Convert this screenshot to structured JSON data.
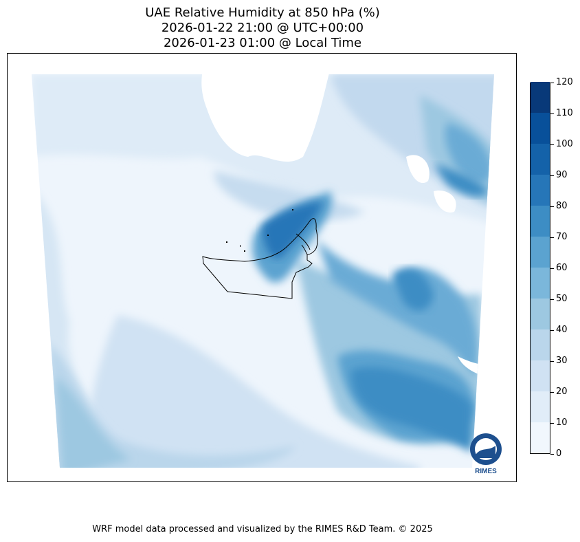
{
  "title": {
    "line1": "UAE Relative Humidity at 850 hPa (%)",
    "line2": "2026-01-22 21:00 @ UTC+00:00",
    "line3": "2026-01-23 01:00 @ Local Time"
  },
  "colorbar": {
    "ticks": [
      "0",
      "10",
      "20",
      "30",
      "40",
      "50",
      "60",
      "70",
      "80",
      "90",
      "100",
      "110",
      "120"
    ],
    "colors": [
      "#f1f7fd",
      "#e1edf8",
      "#d0e2f3",
      "#bad6eb",
      "#9dc8e1",
      "#7bb7db",
      "#5ba3d0",
      "#3d8dc4",
      "#2676b8",
      "#1462a9",
      "#08509a",
      "#083979"
    ]
  },
  "logo": {
    "text": "RIMES"
  },
  "footer": {
    "credit": "WRF model data processed and visualized by the RIMES R&D Team. © 2025"
  }
}
